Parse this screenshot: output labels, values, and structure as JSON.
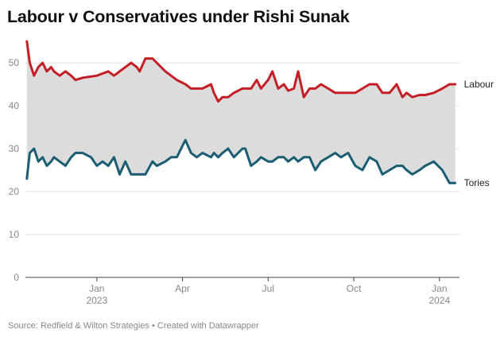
{
  "title": "Labour v Conservatives under Rishi Sunak",
  "source": "Source: Redfield & Wilton Strategies • Created with Datawrapper",
  "chart_data": {
    "type": "line",
    "title": "Labour v Conservatives under Rishi Sunak",
    "xlabel": "",
    "ylabel": "",
    "ylim": [
      0,
      55
    ],
    "yticks": [
      0,
      10,
      20,
      30,
      40,
      50
    ],
    "xlim": [
      0,
      15.2
    ],
    "xticks": [
      {
        "pos": 2.5,
        "label": "Jan",
        "sublabel": "2023"
      },
      {
        "pos": 5.5,
        "label": "Apr",
        "sublabel": ""
      },
      {
        "pos": 8.5,
        "label": "Jul",
        "sublabel": ""
      },
      {
        "pos": 11.5,
        "label": "Oct",
        "sublabel": ""
      },
      {
        "pos": 14.5,
        "label": "Jan",
        "sublabel": "2024"
      }
    ],
    "fill_between": {
      "color": "#dcdcdc",
      "series": [
        "Labour",
        "Tories"
      ]
    },
    "series": [
      {
        "name": "Labour",
        "label": "Labour",
        "color": "#c41f27",
        "x": [
          0.05,
          0.15,
          0.3,
          0.45,
          0.6,
          0.75,
          0.9,
          1.0,
          1.2,
          1.4,
          1.6,
          1.75,
          2.0,
          2.5,
          2.7,
          2.9,
          3.1,
          3.3,
          3.5,
          3.7,
          3.9,
          4.0,
          4.2,
          4.45,
          4.6,
          4.9,
          5.1,
          5.3,
          5.6,
          5.8,
          6.0,
          6.2,
          6.5,
          6.6,
          6.75,
          6.9,
          7.1,
          7.3,
          7.6,
          7.7,
          7.9,
          8.1,
          8.25,
          8.5,
          8.65,
          8.85,
          9.05,
          9.2,
          9.4,
          9.55,
          9.75,
          9.95,
          10.15,
          10.35,
          10.6,
          10.85,
          11.05,
          11.3,
          11.55,
          11.8,
          12.05,
          12.3,
          12.5,
          12.75,
          13.0,
          13.2,
          13.35,
          13.55,
          13.8,
          14.0,
          14.3,
          14.6,
          14.85,
          15.05
        ],
        "y": [
          55,
          50,
          47,
          49,
          50,
          48,
          49,
          48,
          47,
          48,
          47,
          46,
          46.5,
          47,
          47.5,
          48,
          47,
          48,
          49,
          50,
          49,
          48,
          51,
          51,
          50,
          48,
          47,
          46,
          45,
          44,
          44,
          44,
          45,
          43,
          41,
          42,
          42,
          43,
          44,
          44,
          44,
          46,
          44,
          46,
          48,
          44,
          45,
          43.5,
          44,
          48,
          42,
          44,
          44,
          45,
          44,
          43,
          43,
          43,
          43,
          44,
          45,
          45,
          43,
          43,
          45,
          42,
          43,
          42,
          42.5,
          42.5,
          43,
          44,
          45,
          45
        ]
      },
      {
        "name": "Tories",
        "label": "Tories",
        "color": "#1b5e73",
        "x": [
          0.05,
          0.15,
          0.3,
          0.45,
          0.6,
          0.75,
          0.9,
          1.0,
          1.2,
          1.4,
          1.6,
          1.75,
          2.0,
          2.3,
          2.5,
          2.7,
          2.9,
          3.1,
          3.3,
          3.5,
          3.7,
          3.9,
          4.0,
          4.2,
          4.45,
          4.6,
          4.9,
          5.1,
          5.3,
          5.6,
          5.8,
          6.0,
          6.2,
          6.5,
          6.6,
          6.75,
          6.9,
          7.1,
          7.3,
          7.6,
          7.7,
          7.9,
          8.1,
          8.25,
          8.5,
          8.65,
          8.85,
          9.05,
          9.2,
          9.4,
          9.55,
          9.75,
          9.95,
          10.15,
          10.35,
          10.6,
          10.85,
          11.05,
          11.3,
          11.55,
          11.8,
          12.05,
          12.3,
          12.5,
          12.75,
          13.0,
          13.2,
          13.35,
          13.55,
          13.8,
          14.0,
          14.3,
          14.6,
          14.85,
          15.05
        ],
        "y": [
          23,
          29,
          30,
          27,
          28,
          26,
          27,
          28,
          27,
          26,
          28,
          29,
          29,
          28,
          26,
          27,
          26,
          28,
          24,
          27,
          24,
          24,
          24,
          24,
          27,
          26,
          27,
          28,
          28,
          32,
          29,
          28,
          29,
          28,
          29,
          28,
          29,
          30,
          28,
          30,
          30,
          26,
          27,
          28,
          27,
          27,
          28,
          28,
          27,
          28,
          27,
          28,
          28,
          25,
          27,
          28,
          29,
          28,
          29,
          26,
          25,
          28,
          27,
          24,
          25,
          26,
          26,
          25,
          24,
          25,
          26,
          27,
          25,
          22,
          22
        ]
      }
    ]
  }
}
